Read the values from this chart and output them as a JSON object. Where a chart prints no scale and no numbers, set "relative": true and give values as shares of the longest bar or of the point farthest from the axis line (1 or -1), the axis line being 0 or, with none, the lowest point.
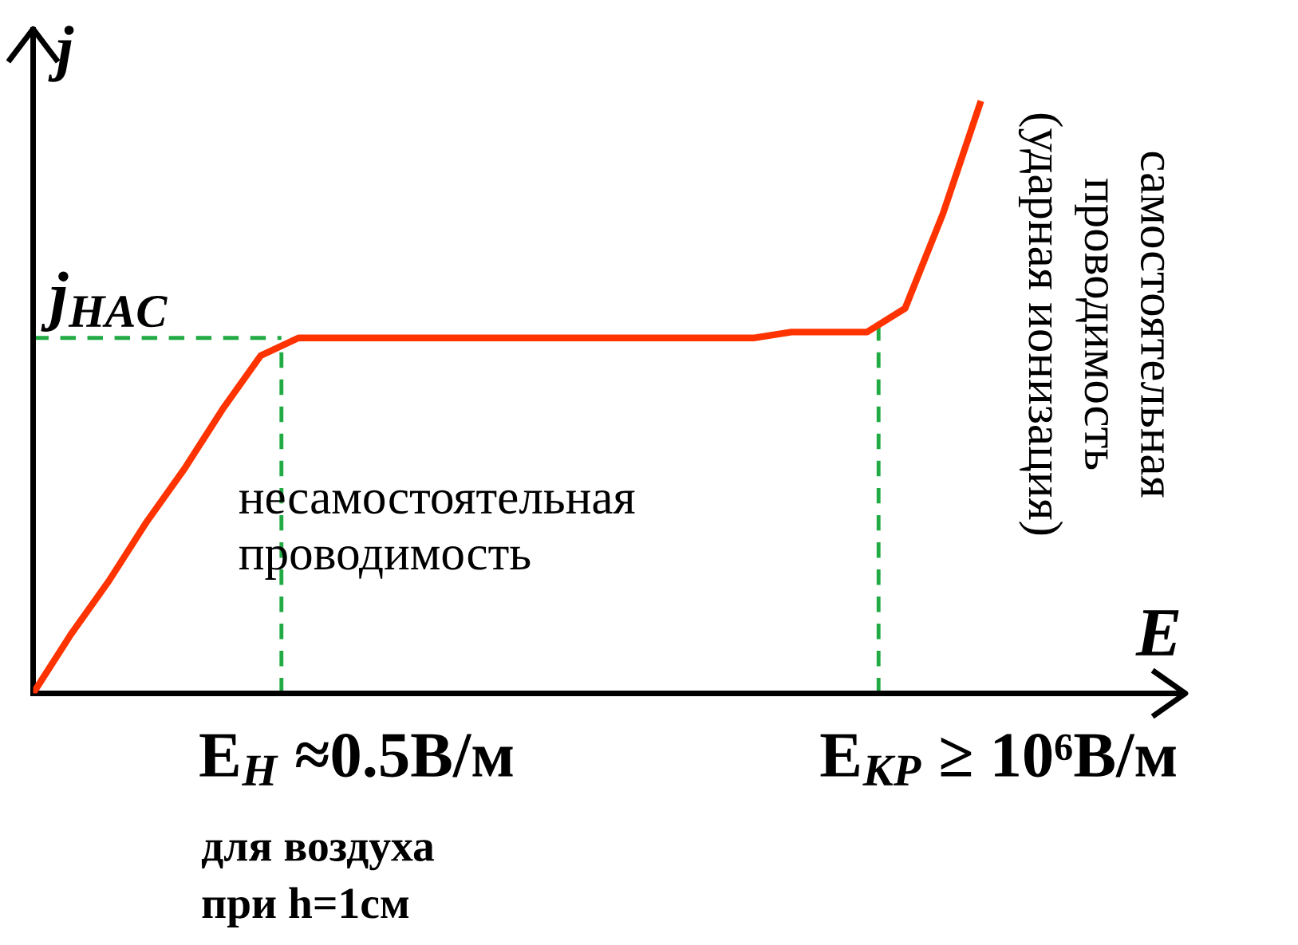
{
  "chart_data": {
    "type": "line",
    "relative": true,
    "xlabel": "E",
    "ylabel": "j",
    "categories": [
      null,
      null,
      null,
      null,
      null,
      null,
      null,
      null,
      null,
      null,
      null,
      null,
      null,
      null,
      null,
      null,
      null,
      null,
      null,
      null,
      null,
      null,
      null,
      null,
      null,
      null,
      null,
      null,
      null,
      null,
      null
    ],
    "series": [
      {
        "color": "#ff3300",
        "values": [
          0,
          0.1,
          0.19,
          0.29,
          0.38,
          0.48,
          0.57,
          0.6,
          0.6,
          0.6,
          0.6,
          0.6,
          0.6,
          0.6,
          0.6,
          0.6,
          0.6,
          0.6,
          0.6,
          0.6,
          0.61,
          0.61,
          0.61,
          0.65,
          0.81,
          1.0,
          null,
          null,
          null,
          null,
          null
        ]
      }
    ],
    "ref_lines": [
      {
        "axis": "y",
        "value": 0.6,
        "label": "j$_{НАС}$",
        "color": "#22aa44",
        "line_style": "dashed"
      }
    ],
    "annotations": [
      "несамостоятельная\nпроводимость",
      "самостоятельная\nпроводимость\n(ударная ионизация)",
      "для воздуха\nпри h=1см",
      "E$_{Н}$ ≈0.5В/м",
      "E$_{КР}$ ≥ 10⁶В/м"
    ],
    "grid": false,
    "legend": false,
    "marker": "none",
    "line_style": "solid"
  }
}
